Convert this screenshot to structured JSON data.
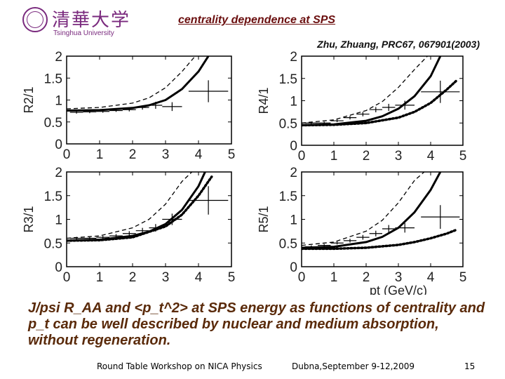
{
  "header": {
    "logo_cn": "清華大学",
    "logo_en": "Tsinghua University",
    "title": "centrality dependence at SPS",
    "citation": "Zhu, Zhuang, PRC67, 067901(2003)"
  },
  "summary": "J/psi R_AA and <p_t^2> at SPS energy as functions of centrality and p_t can be well described by nuclear and medium absorption, without regeneration.",
  "footer": {
    "left": "Round Table Workshop on NICA Physics",
    "mid": "Dubna,September 9-12,2009",
    "page": "15"
  },
  "colors": {
    "title": "#6b0f0f",
    "summary": "#5a2a0a",
    "logo": "#7a2a7e"
  },
  "chart_data": [
    {
      "type": "line",
      "panel": "R2/1",
      "ylabel": "R2/1",
      "xlabel": "",
      "xlim": [
        0,
        5
      ],
      "ylim": [
        0,
        2
      ],
      "xticks": [
        "0",
        "1",
        "2",
        "3",
        "4",
        "5"
      ],
      "yticks": [
        "0",
        "0.5",
        "1",
        "1.5",
        "2"
      ],
      "series": [
        {
          "style": "solid",
          "x": [
            0,
            1,
            2,
            2.5,
            3,
            3.5,
            4,
            4.3
          ],
          "y": [
            0.76,
            0.77,
            0.82,
            0.88,
            1.0,
            1.25,
            1.65,
            2.0
          ]
        },
        {
          "style": "dashed",
          "x": [
            0,
            1,
            2,
            2.5,
            3,
            3.5,
            3.9
          ],
          "y": [
            0.8,
            0.83,
            0.93,
            1.05,
            1.28,
            1.65,
            2.0
          ]
        },
        {
          "style": "points",
          "x": [
            0.3,
            0.7,
            1.1,
            1.5,
            1.9,
            2.3,
            2.7,
            3.2,
            4.3
          ],
          "y": [
            0.72,
            0.73,
            0.74,
            0.76,
            0.78,
            0.83,
            0.88,
            0.85,
            1.2
          ],
          "xerr": [
            0.2,
            0.2,
            0.2,
            0.2,
            0.2,
            0.2,
            0.2,
            0.3,
            0.6
          ],
          "yerr": [
            0.03,
            0.03,
            0.03,
            0.03,
            0.04,
            0.05,
            0.08,
            0.1,
            0.25
          ]
        }
      ]
    },
    {
      "type": "line",
      "panel": "R4/1",
      "ylabel": "R4/1",
      "xlabel": "",
      "xlim": [
        0,
        5
      ],
      "ylim": [
        0,
        2
      ],
      "xticks": [
        "0",
        "1",
        "2",
        "3",
        "4",
        "5"
      ],
      "yticks": [
        "0",
        "0.5",
        "1",
        "1.5",
        "2"
      ],
      "series": [
        {
          "style": "solid",
          "x": [
            0,
            1,
            2,
            2.5,
            3,
            3.5,
            4,
            4.3
          ],
          "y": [
            0.45,
            0.47,
            0.55,
            0.65,
            0.82,
            1.1,
            1.55,
            2.0
          ]
        },
        {
          "style": "dashed",
          "x": [
            0,
            1,
            2,
            2.5,
            3,
            3.5,
            3.9
          ],
          "y": [
            0.5,
            0.57,
            0.78,
            0.98,
            1.3,
            1.7,
            2.0
          ]
        },
        {
          "style": "dotted",
          "x": [
            0,
            1,
            2,
            3,
            3.5,
            4,
            4.5,
            4.8
          ],
          "y": [
            0.45,
            0.46,
            0.5,
            0.62,
            0.75,
            0.95,
            1.25,
            1.45
          ]
        },
        {
          "style": "points",
          "x": [
            0.3,
            0.7,
            1.1,
            1.5,
            1.9,
            2.3,
            2.7,
            3.2,
            4.3
          ],
          "y": [
            0.5,
            0.5,
            0.55,
            0.62,
            0.7,
            0.8,
            0.85,
            0.9,
            1.2
          ],
          "xerr": [
            0.2,
            0.2,
            0.2,
            0.2,
            0.2,
            0.2,
            0.2,
            0.3,
            0.6
          ],
          "yerr": [
            0.03,
            0.03,
            0.03,
            0.04,
            0.05,
            0.06,
            0.08,
            0.1,
            0.25
          ]
        }
      ]
    },
    {
      "type": "line",
      "panel": "R3/1",
      "ylabel": "R3/1",
      "xlabel": "",
      "xlim": [
        0,
        5
      ],
      "ylim": [
        0,
        2
      ],
      "xticks": [
        "0",
        "1",
        "2",
        "3",
        "4",
        "5"
      ],
      "yticks": [
        "0",
        "0.5",
        "1",
        "1.5",
        "2"
      ],
      "series": [
        {
          "style": "solid",
          "x": [
            0,
            1,
            2,
            2.5,
            3,
            3.5,
            4,
            4.2
          ],
          "y": [
            0.55,
            0.57,
            0.65,
            0.74,
            0.9,
            1.2,
            1.7,
            2.0
          ]
        },
        {
          "style": "dashed",
          "x": [
            0,
            1,
            2,
            2.5,
            3,
            3.5,
            3.8
          ],
          "y": [
            0.6,
            0.65,
            0.82,
            1.0,
            1.32,
            1.8,
            2.0
          ]
        },
        {
          "style": "dotted",
          "x": [
            0,
            1,
            2,
            3,
            3.5,
            4,
            4.4
          ],
          "y": [
            0.55,
            0.56,
            0.62,
            0.85,
            1.1,
            1.5,
            1.9
          ]
        },
        {
          "style": "points",
          "x": [
            0.3,
            0.7,
            1.1,
            1.5,
            1.9,
            2.3,
            2.7,
            3.2,
            4.3
          ],
          "y": [
            0.6,
            0.6,
            0.62,
            0.65,
            0.7,
            0.76,
            0.82,
            1.0,
            1.4
          ],
          "xerr": [
            0.2,
            0.2,
            0.2,
            0.2,
            0.2,
            0.2,
            0.2,
            0.3,
            0.6
          ],
          "yerr": [
            0.03,
            0.03,
            0.03,
            0.04,
            0.05,
            0.06,
            0.08,
            0.12,
            0.3
          ]
        }
      ]
    },
    {
      "type": "line",
      "panel": "R5/1",
      "ylabel": "R5/1",
      "xlabel": "pt (GeV/c)",
      "xlim": [
        0,
        5
      ],
      "ylim": [
        0,
        2
      ],
      "xticks": [
        "0",
        "1",
        "2",
        "3",
        "4",
        "5"
      ],
      "yticks": [
        "0",
        "0.5",
        "1",
        "1.5",
        "2"
      ],
      "series": [
        {
          "style": "solid",
          "x": [
            0,
            1,
            2,
            2.5,
            3,
            3.5,
            4,
            4.3
          ],
          "y": [
            0.4,
            0.42,
            0.52,
            0.63,
            0.82,
            1.15,
            1.62,
            2.0
          ]
        },
        {
          "style": "dashed",
          "x": [
            0,
            1,
            2,
            2.5,
            3,
            3.5,
            3.8
          ],
          "y": [
            0.45,
            0.52,
            0.75,
            0.98,
            1.35,
            1.82,
            2.0
          ]
        },
        {
          "style": "dotted",
          "x": [
            0,
            1,
            2,
            3,
            3.5,
            4,
            4.5,
            4.8
          ],
          "y": [
            0.38,
            0.38,
            0.4,
            0.46,
            0.52,
            0.6,
            0.7,
            0.78
          ]
        },
        {
          "style": "points",
          "x": [
            0.3,
            0.7,
            1.1,
            1.5,
            1.9,
            2.3,
            2.7,
            3.2,
            4.3
          ],
          "y": [
            0.42,
            0.45,
            0.5,
            0.55,
            0.62,
            0.7,
            0.8,
            0.82,
            1.05
          ],
          "xerr": [
            0.2,
            0.2,
            0.2,
            0.2,
            0.2,
            0.2,
            0.2,
            0.3,
            0.6
          ],
          "yerr": [
            0.03,
            0.03,
            0.03,
            0.04,
            0.05,
            0.06,
            0.08,
            0.1,
            0.25
          ]
        }
      ]
    }
  ]
}
